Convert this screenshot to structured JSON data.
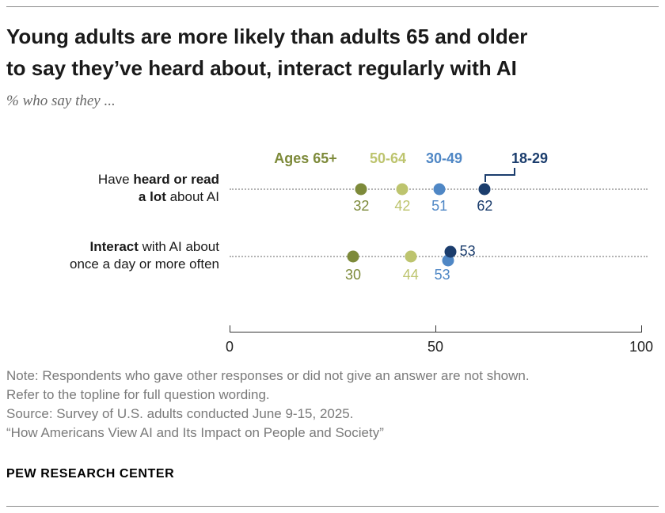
{
  "header": {
    "title_line1": "Young adults are more likely than adults 65 and older",
    "title_line2": "to say they’ve heard about, interact regularly with AI",
    "subtitle": "% who say they ..."
  },
  "chart_data": {
    "type": "scatter",
    "subtype": "dot-plot",
    "legend_position": "top",
    "grid": "dotted-row-leaders",
    "axis": {
      "min": 0,
      "max": 100,
      "ticks": [
        0,
        50,
        100
      ]
    },
    "categories": [
      "Have heard or read a lot about AI",
      "Interact with AI about once a day or more often"
    ],
    "category_rich": [
      {
        "lines": [
          [
            {
              "t": "Have ",
              "b": false
            },
            {
              "t": "heard or read",
              "b": true
            }
          ],
          [
            {
              "t": "a lot",
              "b": true
            },
            {
              "t": " about AI",
              "b": false
            }
          ]
        ]
      },
      {
        "lines": [
          [
            {
              "t": "Interact",
              "b": true
            },
            {
              "t": " with AI about",
              "b": false
            }
          ],
          [
            {
              "t": "once a day or more often",
              "b": false
            }
          ]
        ]
      }
    ],
    "series": [
      {
        "name": "Ages 65+",
        "color": "#7d8a3a",
        "values": [
          32,
          30
        ]
      },
      {
        "name": "50-64",
        "color": "#bdc46e",
        "values": [
          42,
          44
        ]
      },
      {
        "name": "30-49",
        "color": "#4f87c5",
        "values": [
          51,
          53
        ]
      },
      {
        "name": "18-29",
        "color": "#1b3d6d",
        "values": [
          62,
          53
        ]
      }
    ]
  },
  "notes": {
    "line1": "Note: Respondents who gave other responses or did not give an answer are not shown.",
    "line2": "Refer to the topline for full question wording.",
    "line3": "Source: Survey of U.S. adults conducted June 9-15, 2025.",
    "line4": "“How Americans View AI and Its Impact on People and Society”"
  },
  "brand": "PEW RESEARCH CENTER"
}
